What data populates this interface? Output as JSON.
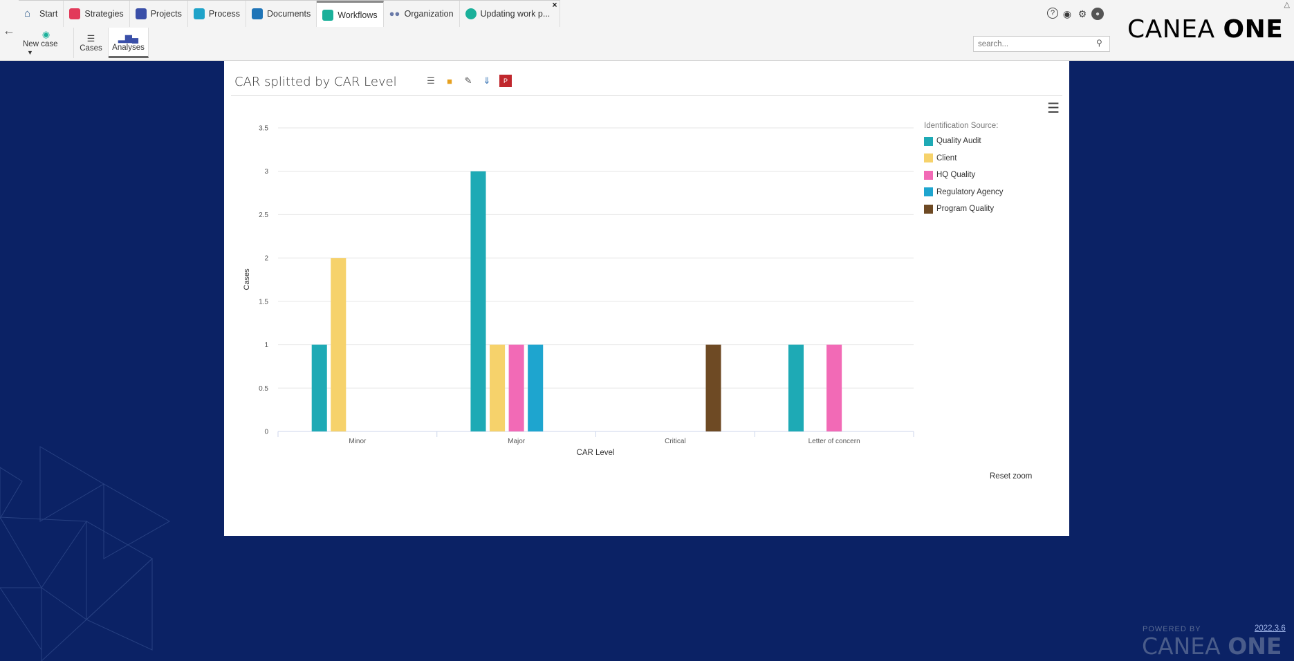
{
  "tabs": [
    {
      "label": "Start",
      "icon": "home-icon",
      "color": "#2d5a8a"
    },
    {
      "label": "Strategies",
      "icon": "strategies-icon",
      "color": "#e23a5a"
    },
    {
      "label": "Projects",
      "icon": "projects-icon",
      "color": "#3a4fa8"
    },
    {
      "label": "Process",
      "icon": "process-icon",
      "color": "#1fa3c9"
    },
    {
      "label": "Documents",
      "icon": "documents-icon",
      "color": "#1e74b7"
    },
    {
      "label": "Workflows",
      "icon": "workflows-icon",
      "color": "#1ab09a"
    },
    {
      "label": "Organization",
      "icon": "organization-icon",
      "color": "#6a7aa8"
    },
    {
      "label": "Updating work p...",
      "icon": "case-icon",
      "color": "#1ab09a"
    }
  ],
  "subbar": {
    "new_case": "New case",
    "cases": "Cases",
    "analyses": "Analyses"
  },
  "search": {
    "placeholder": "search..."
  },
  "logo": {
    "text_light": "CANEA ",
    "text_bold": "ONE"
  },
  "card": {
    "title": "CAR splitted by CAR Level",
    "reset_zoom": "Reset zoom"
  },
  "footer": {
    "powered": "POWERED BY",
    "logo_light": "CANEA ",
    "logo_bold": "ONE",
    "version": "2022.3.6"
  },
  "chart_data": {
    "type": "bar",
    "title": "",
    "xlabel": "CAR Level",
    "ylabel": "Cases",
    "ylim": [
      0,
      3.5
    ],
    "yticks": [
      "0",
      "0.5",
      "1",
      "1.5",
      "2",
      "2.5",
      "3",
      "3.5"
    ],
    "categories": [
      "Minor",
      "Major",
      "Critical",
      "Letter of concern"
    ],
    "legend_title": "Identification Source:",
    "legend_position": "right",
    "grid": true,
    "series": [
      {
        "name": "Quality Audit",
        "color": "#1eaab5",
        "values": [
          1,
          3,
          0,
          1
        ]
      },
      {
        "name": "Client",
        "color": "#f6d26b",
        "values": [
          2,
          1,
          0,
          0
        ]
      },
      {
        "name": "HQ Quality",
        "color": "#f26ab6",
        "values": [
          0,
          1,
          0,
          1
        ]
      },
      {
        "name": "Regulatory Agency",
        "color": "#1ea5cf",
        "values": [
          0,
          1,
          0,
          0
        ]
      },
      {
        "name": "Program Quality",
        "color": "#6e4a24",
        "values": [
          0,
          0,
          1,
          0
        ]
      }
    ]
  }
}
